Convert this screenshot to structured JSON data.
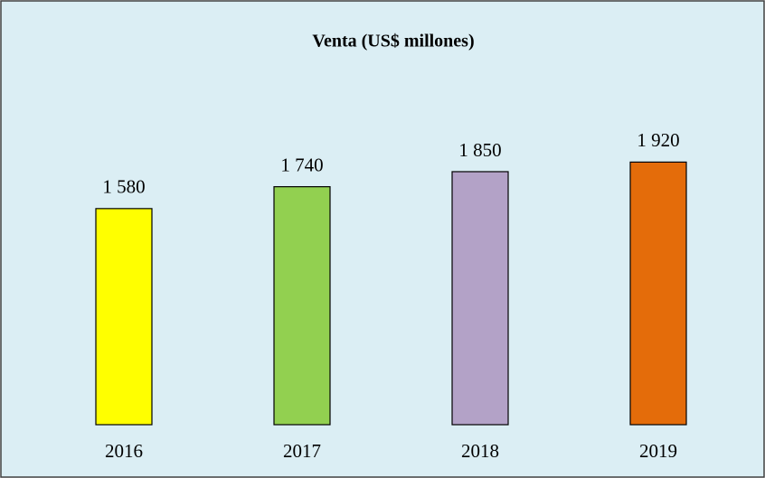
{
  "chart_data": {
    "type": "bar",
    "title": "Venta (US$ millones)",
    "categories": [
      "2016",
      "2017",
      "2018",
      "2019"
    ],
    "values": [
      1580,
      1740,
      1850,
      1920
    ],
    "value_labels": [
      "1 580",
      "1 740",
      "1 850",
      "1 920"
    ],
    "colors": [
      "#ffff00",
      "#92d050",
      "#b3a2c7",
      "#e46c0a"
    ],
    "ylim": [
      0,
      2200
    ]
  }
}
